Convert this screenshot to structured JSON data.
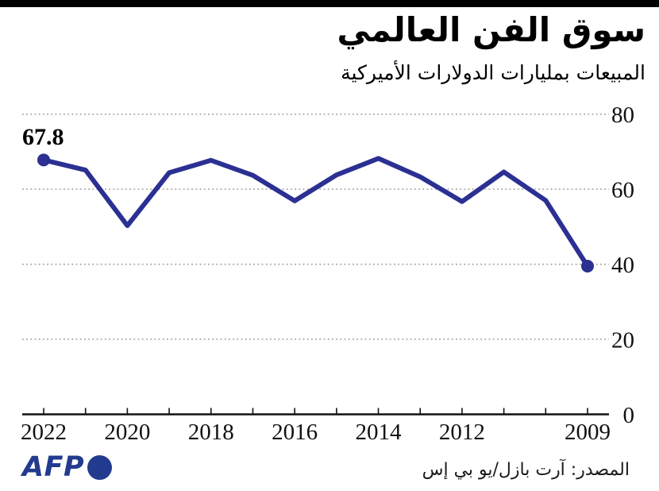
{
  "header": {
    "title": "سوق الفن العالمي",
    "subtitle": "المبيعات بمليارات الدولارات الأميركية"
  },
  "chart_data": {
    "type": "line",
    "direction": "rtl",
    "title": "سوق الفن العالمي",
    "subtitle": "المبيعات بمليارات الدولارات الأميركية",
    "x": [
      2022,
      2021,
      2020,
      2019,
      2018,
      2017,
      2016,
      2015,
      2014,
      2013,
      2012,
      2011,
      2010,
      2009
    ],
    "series": [
      {
        "name": "sales_billions_usd",
        "values": [
          67.8,
          65.1,
          50.3,
          64.4,
          67.7,
          63.7,
          56.9,
          63.8,
          68.2,
          63.3,
          56.7,
          64.6,
          57.0,
          39.5
        ]
      }
    ],
    "x_tick_labels": [
      2022,
      2020,
      2018,
      2016,
      2014,
      2012,
      2009
    ],
    "y_ticks": [
      0,
      20,
      40,
      60,
      80
    ],
    "ylim": [
      0,
      80
    ],
    "grid": "dotted-horizontal",
    "legend": "none",
    "annotation": {
      "text": "67.8",
      "x": 2022
    },
    "line_color": "#2b3092",
    "grid_color": "#999999",
    "axis_color": "#111111",
    "markers": "first-and-last"
  },
  "footer": {
    "logo": "AFP",
    "logo_color": "#233b8f",
    "source": "المصدر: آرت بازل/يو بي إس"
  }
}
